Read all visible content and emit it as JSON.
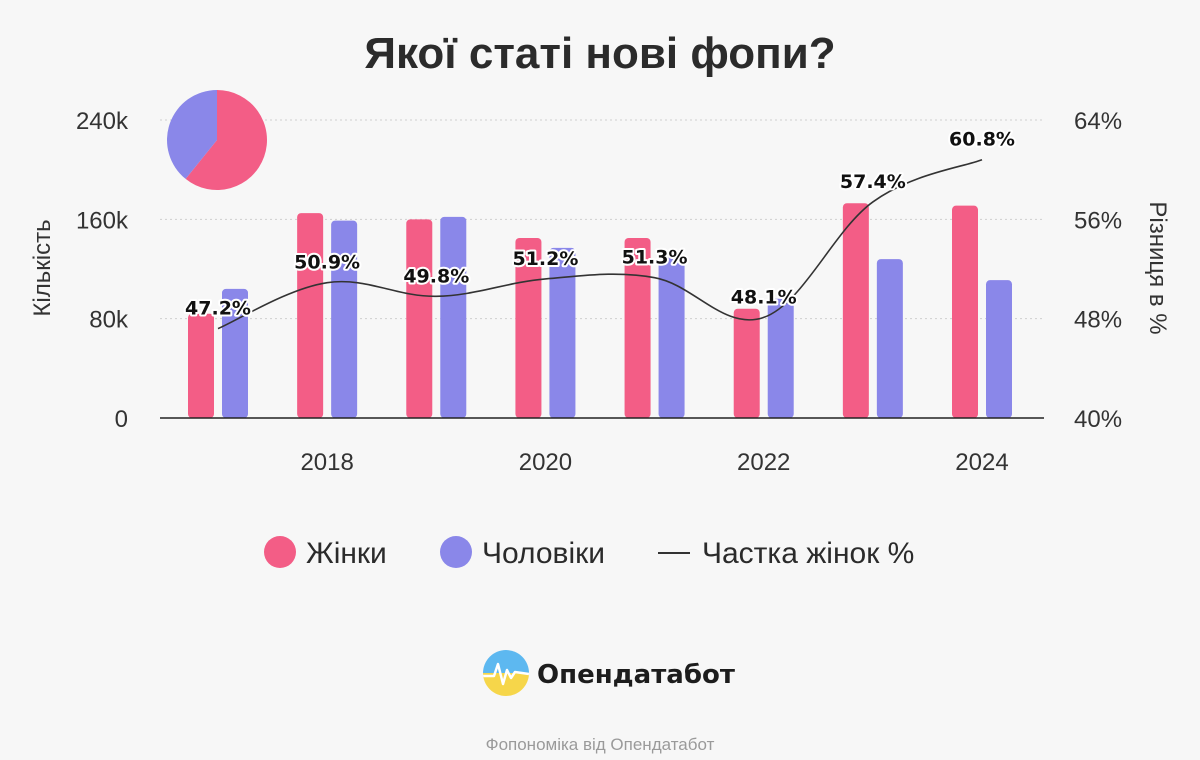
{
  "title": "Якої статі нові фопи?",
  "colors": {
    "women": "#f35d86",
    "men": "#8a87e9",
    "share_line": "#333333",
    "logo_top": "#5db8f0",
    "logo_bottom": "#f6d64a"
  },
  "chart_data": {
    "type": "bar",
    "title": "Якої статі нові фопи?",
    "x": [
      2017,
      2018,
      2019,
      2020,
      2021,
      2022,
      2023,
      2024
    ],
    "x_tick_labels": [
      "2018",
      "2020",
      "2022",
      "2024"
    ],
    "x_tick_values": [
      2018,
      2020,
      2022,
      2024
    ],
    "ylabel": "Кількість",
    "y2label": "Різниця в %",
    "ylim": [
      0,
      240000
    ],
    "y_tick_values": [
      0,
      80000,
      160000,
      240000
    ],
    "y_tick_labels": [
      "0",
      "80k",
      "160k",
      "240k"
    ],
    "y2lim": [
      40,
      64
    ],
    "y2_tick_values": [
      40,
      48,
      56,
      64
    ],
    "y2_tick_labels": [
      "40%",
      "48%",
      "56%",
      "64%"
    ],
    "grid": true,
    "legend_position": "bottom",
    "series": [
      {
        "name": "Жінки",
        "type": "bar",
        "axis": "left",
        "values": [
          84000,
          165000,
          160000,
          145000,
          145000,
          88000,
          173000,
          171000
        ]
      },
      {
        "name": "Чоловіки",
        "type": "bar",
        "axis": "left",
        "values": [
          104000,
          159000,
          162000,
          137000,
          130000,
          96000,
          128000,
          111000
        ]
      },
      {
        "name": "Частка жінок %",
        "type": "line",
        "axis": "right",
        "values": [
          47.2,
          50.9,
          49.8,
          51.2,
          51.3,
          48.1,
          57.4,
          60.8
        ],
        "labels": [
          "47.2%",
          "50.9%",
          "49.8%",
          "51.2%",
          "51.3%",
          "48.1%",
          "57.4%",
          "60.8%"
        ]
      }
    ],
    "inset_pie": {
      "type": "pie",
      "women_share": 0.608,
      "men_share": 0.392
    }
  },
  "legend": [
    {
      "label": "Жінки",
      "marker": "circle"
    },
    {
      "label": "Чоловіки",
      "marker": "circle"
    },
    {
      "label": "Частка жінок %",
      "marker": "line"
    }
  ],
  "brand": {
    "name": "Опендатабот",
    "icon": "opendatabot-logo-icon"
  },
  "footer": "Фопономіка від Опендатабот"
}
